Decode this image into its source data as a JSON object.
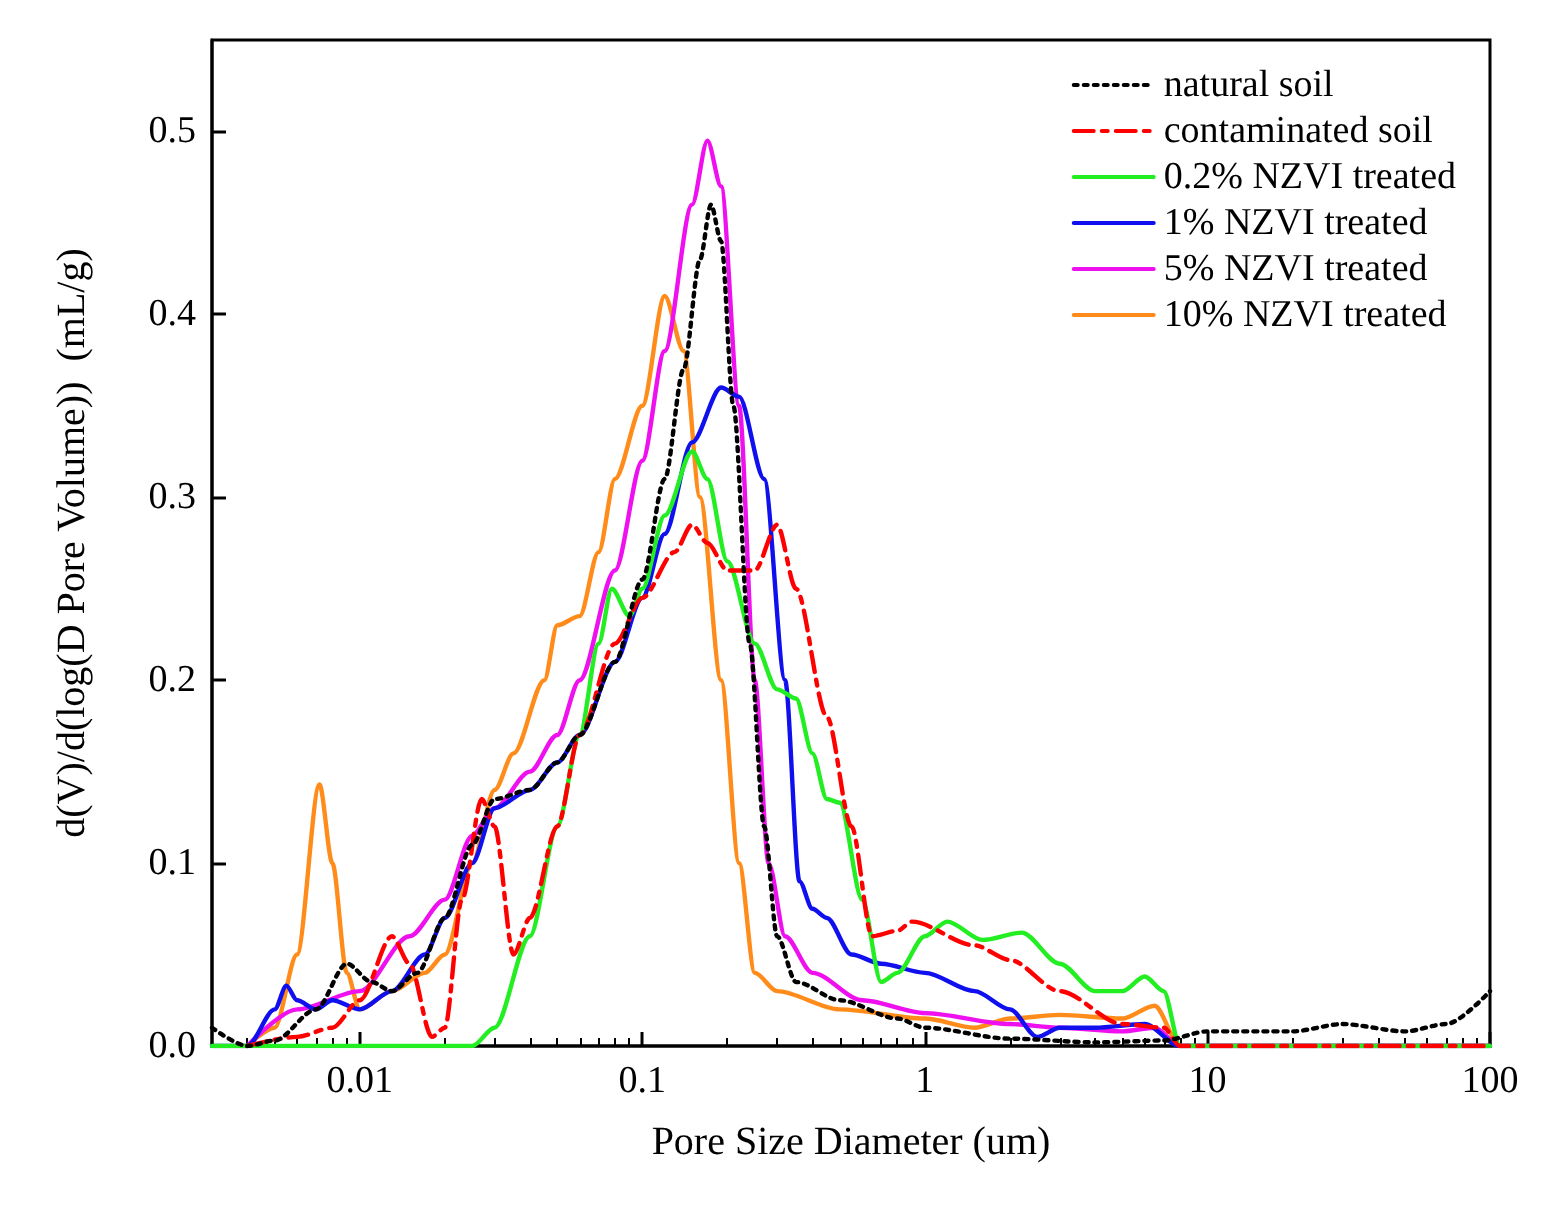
{
  "chart_data": {
    "type": "line",
    "xlabel": "Pore Size Diameter (um)",
    "ylabel": "d(V)/d(log(D Pore Volume))  (mL/g)",
    "log": "x",
    "xlim": [
      0.003,
      100
    ],
    "xticks": [
      0.01,
      0.1,
      1,
      10,
      100
    ],
    "ylim": [
      0,
      0.55
    ],
    "yticks": [
      {
        "value": 0,
        "label": "0.0"
      },
      0.1,
      0.2,
      0.3,
      0.4,
      0.5
    ],
    "grid": false,
    "legend": "top right",
    "marker": "none",
    "series": [
      {
        "name": "natural soil",
        "color": "#000000",
        "line_style": "dotted",
        "x": [
          0.003,
          0.004,
          0.005,
          0.007,
          0.009,
          0.011,
          0.013,
          0.016,
          0.02,
          0.025,
          0.03,
          0.04,
          0.05,
          0.06,
          0.08,
          0.1,
          0.12,
          0.14,
          0.16,
          0.175,
          0.19,
          0.21,
          0.24,
          0.27,
          0.3,
          0.35,
          0.5,
          0.8,
          1,
          2,
          4,
          7,
          10,
          20,
          30,
          50,
          70,
          100
        ],
        "values": [
          0.01,
          0,
          0.003,
          0.02,
          0.045,
          0.035,
          0.03,
          0.04,
          0.07,
          0.11,
          0.135,
          0.14,
          0.155,
          0.17,
          0.21,
          0.255,
          0.31,
          0.37,
          0.43,
          0.46,
          0.44,
          0.35,
          0.22,
          0.12,
          0.06,
          0.035,
          0.025,
          0.015,
          0.01,
          0.004,
          0.002,
          0.003,
          0.008,
          0.008,
          0.012,
          0.008,
          0.012,
          0.03
        ]
      },
      {
        "name": "contaminated soil",
        "color": "#ff0000",
        "line_style": "dashdot",
        "x": [
          0.004,
          0.006,
          0.008,
          0.01,
          0.013,
          0.015,
          0.018,
          0.02,
          0.023,
          0.027,
          0.03,
          0.035,
          0.04,
          0.05,
          0.06,
          0.08,
          0.1,
          0.13,
          0.15,
          0.17,
          0.2,
          0.25,
          0.3,
          0.35,
          0.45,
          0.55,
          0.65,
          0.8,
          0.9,
          1.5,
          2,
          3,
          5,
          7,
          8,
          100
        ],
        "values": [
          0,
          0.005,
          0.01,
          0.025,
          0.06,
          0.045,
          0.005,
          0.01,
          0.08,
          0.135,
          0.12,
          0.05,
          0.07,
          0.12,
          0.17,
          0.22,
          0.245,
          0.27,
          0.285,
          0.275,
          0.26,
          0.26,
          0.285,
          0.25,
          0.18,
          0.12,
          0.06,
          0.063,
          0.068,
          0.055,
          0.047,
          0.03,
          0.012,
          0.01,
          0,
          0
        ]
      },
      {
        "name": "0.2% NZVI treated",
        "color": "#22ee22",
        "line_style": "solid",
        "x": [
          0.003,
          0.025,
          0.03,
          0.04,
          0.05,
          0.06,
          0.07,
          0.078,
          0.09,
          0.1,
          0.12,
          0.15,
          0.17,
          0.2,
          0.25,
          0.3,
          0.35,
          0.4,
          0.45,
          0.5,
          0.6,
          0.7,
          0.8,
          1,
          1.2,
          1.6,
          2.2,
          3,
          4,
          5,
          6,
          7,
          8,
          100
        ],
        "values": [
          0,
          0,
          0.01,
          0.06,
          0.12,
          0.17,
          0.22,
          0.25,
          0.235,
          0.25,
          0.29,
          0.325,
          0.31,
          0.265,
          0.22,
          0.195,
          0.19,
          0.16,
          0.135,
          0.133,
          0.08,
          0.035,
          0.04,
          0.06,
          0.068,
          0.058,
          0.062,
          0.045,
          0.03,
          0.03,
          0.038,
          0.03,
          0,
          0
        ]
      },
      {
        "name": "1% NZVI treated",
        "color": "#1010ee",
        "line_style": "solid",
        "x": [
          0.003,
          0.004,
          0.005,
          0.0055,
          0.006,
          0.007,
          0.008,
          0.01,
          0.013,
          0.017,
          0.02,
          0.025,
          0.03,
          0.04,
          0.05,
          0.06,
          0.08,
          0.1,
          0.12,
          0.15,
          0.19,
          0.22,
          0.27,
          0.32,
          0.36,
          0.4,
          0.45,
          0.55,
          0.7,
          1,
          1.5,
          2,
          2.5,
          3,
          4,
          6,
          8,
          100
        ],
        "values": [
          0,
          0,
          0.02,
          0.033,
          0.025,
          0.02,
          0.025,
          0.02,
          0.03,
          0.05,
          0.07,
          0.1,
          0.13,
          0.14,
          0.155,
          0.17,
          0.21,
          0.245,
          0.28,
          0.33,
          0.36,
          0.355,
          0.31,
          0.2,
          0.09,
          0.075,
          0.07,
          0.05,
          0.045,
          0.04,
          0.03,
          0.02,
          0.005,
          0.01,
          0.01,
          0.012,
          0,
          0
        ]
      },
      {
        "name": "5% NZVI treated",
        "color": "#ee10ee",
        "line_style": "solid",
        "x": [
          0.004,
          0.006,
          0.01,
          0.015,
          0.02,
          0.025,
          0.03,
          0.04,
          0.05,
          0.06,
          0.08,
          0.1,
          0.12,
          0.15,
          0.17,
          0.19,
          0.22,
          0.25,
          0.28,
          0.32,
          0.4,
          0.6,
          1,
          2,
          3,
          5,
          6.5,
          8,
          100
        ],
        "values": [
          0,
          0.02,
          0.03,
          0.06,
          0.08,
          0.115,
          0.13,
          0.15,
          0.17,
          0.2,
          0.26,
          0.32,
          0.38,
          0.46,
          0.495,
          0.47,
          0.35,
          0.2,
          0.1,
          0.06,
          0.04,
          0.025,
          0.018,
          0.012,
          0.01,
          0.008,
          0.01,
          0,
          0
        ]
      },
      {
        "name": "10% NZVI treated",
        "color": "#ff8c1a",
        "line_style": "solid",
        "x": [
          0.004,
          0.005,
          0.006,
          0.0072,
          0.008,
          0.009,
          0.01,
          0.013,
          0.017,
          0.02,
          0.025,
          0.03,
          0.035,
          0.045,
          0.05,
          0.06,
          0.07,
          0.08,
          0.1,
          0.12,
          0.14,
          0.16,
          0.19,
          0.22,
          0.25,
          0.3,
          0.5,
          1,
          1.5,
          2,
          3,
          5,
          6.5,
          8,
          100
        ],
        "values": [
          0,
          0.01,
          0.05,
          0.143,
          0.1,
          0.04,
          0.02,
          0.03,
          0.04,
          0.05,
          0.1,
          0.14,
          0.16,
          0.2,
          0.23,
          0.235,
          0.27,
          0.31,
          0.35,
          0.41,
          0.38,
          0.3,
          0.2,
          0.1,
          0.04,
          0.03,
          0.02,
          0.015,
          0.01,
          0.015,
          0.017,
          0.015,
          0.022,
          0,
          0
        ]
      }
    ]
  }
}
